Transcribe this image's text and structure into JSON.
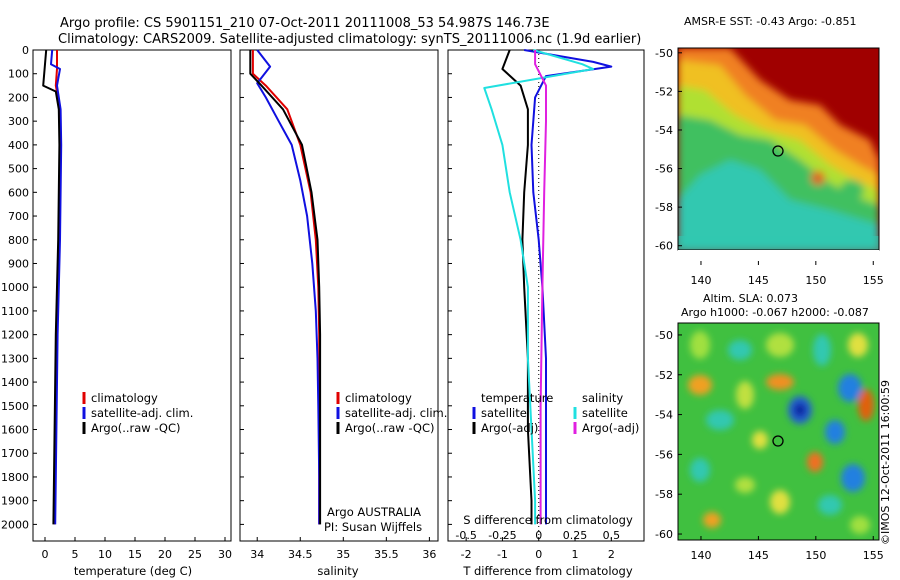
{
  "header": {
    "title_line1": "Argo profile: CS 5901151_210 07-Oct-2011 20111008_53 54.987S 146.73E",
    "title_line2": "Climatology: CARS2009. Satellite-adjusted climatology: synTS_20111006.nc (1.9d earlier)"
  },
  "colors": {
    "climatology": "#e00000",
    "satellite": "#1010e0",
    "argo": "#000000",
    "satellite_salinity": "#20e0e0",
    "argo_salinity_adj": "#e020e0"
  },
  "depth_axis": {
    "ticks": [
      "0",
      "100",
      "200",
      "300",
      "400",
      "500",
      "600",
      "700",
      "800",
      "900",
      "1000",
      "1100",
      "1200",
      "1300",
      "1400",
      "1500",
      "1600",
      "1700",
      "1800",
      "1900",
      "2000"
    ],
    "ylim": [
      0,
      2070
    ]
  },
  "temp_panel": {
    "xlabel": "temperature (deg C)",
    "xticks": [
      "0",
      "5",
      "10",
      "15",
      "20",
      "25",
      "30"
    ],
    "legend": [
      "climatology",
      "satellite-adj. clim.",
      "Argo(..raw -QC)"
    ]
  },
  "sal_panel": {
    "xlabel": "salinity",
    "xticks": [
      "34",
      "34.5",
      "35",
      "35.5",
      "36"
    ],
    "legend": [
      "climatology",
      "satellite-adj. clim.",
      "Argo(..raw -QC)"
    ],
    "note_line1": "Argo AUSTRALIA",
    "note_line2": "PI: Susan Wijffels"
  },
  "diff_panel": {
    "xlabel": "T difference from climatology",
    "top_label": "S difference from climatology",
    "xticks_T": [
      "-2",
      "-1",
      "0",
      "1",
      "2"
    ],
    "xticks_S": [
      "-0.5",
      "-0.25",
      "0",
      "0.25",
      "0.5"
    ],
    "legend_left_title": "temperature",
    "legend_left": [
      "satellite",
      "Argo(-adj)"
    ],
    "legend_right_title": "salinity",
    "legend_right": [
      "satellite",
      "Argo(-adj)"
    ]
  },
  "sst_map": {
    "title": "AMSR-E SST: -0.43 Argo: -0.851",
    "yticks": [
      "-50",
      "-52",
      "-54",
      "-56",
      "-58",
      "-60"
    ],
    "xticks": [
      "140",
      "145",
      "150",
      "155"
    ]
  },
  "sla_map": {
    "title_line1": "Altim. SLA: 0.073",
    "title_line2": "Argo h1000: -0.067 h2000: -0.087",
    "yticks": [
      "-50",
      "-52",
      "-54",
      "-56",
      "-58",
      "-60"
    ],
    "xticks": [
      "140",
      "145",
      "150",
      "155"
    ]
  },
  "watermark": "©IMOS 12-Oct-2011 16:00:59",
  "chart_data": [
    {
      "type": "line",
      "xlabel": "temperature (deg C)",
      "ylabel": "",
      "xlim": [
        -2,
        31
      ],
      "ylim": [
        0,
        2070
      ],
      "series": [
        {
          "name": "climatology",
          "points": [
            [
              2.0,
              0
            ],
            [
              2.0,
              80
            ],
            [
              1.8,
              150
            ],
            [
              2.5,
              250
            ],
            [
              2.6,
              400
            ],
            [
              2.5,
              600
            ],
            [
              2.4,
              800
            ],
            [
              2.2,
              1000
            ],
            [
              2.0,
              1200
            ],
            [
              1.9,
              1400
            ],
            [
              1.8,
              1600
            ],
            [
              1.7,
              1800
            ],
            [
              1.6,
              2000
            ]
          ]
        },
        {
          "name": "satellite-adj. clim.",
          "points": [
            [
              1.2,
              0
            ],
            [
              1.0,
              60
            ],
            [
              2.5,
              80
            ],
            [
              2.0,
              150
            ],
            [
              2.6,
              250
            ],
            [
              2.7,
              400
            ],
            [
              2.6,
              600
            ],
            [
              2.5,
              800
            ],
            [
              2.3,
              1000
            ],
            [
              2.1,
              1200
            ],
            [
              2.0,
              1400
            ],
            [
              1.9,
              1600
            ],
            [
              1.8,
              1800
            ],
            [
              1.7,
              2000
            ]
          ]
        },
        {
          "name": "Argo(..raw -QC)",
          "points": [
            [
              0.2,
              0
            ],
            [
              0.0,
              60
            ],
            [
              -0.3,
              150
            ],
            [
              1.8,
              175
            ],
            [
              2.3,
              250
            ],
            [
              2.4,
              400
            ],
            [
              2.3,
              600
            ],
            [
              2.2,
              800
            ],
            [
              2.0,
              1000
            ],
            [
              1.8,
              1200
            ],
            [
              1.7,
              1400
            ],
            [
              1.6,
              1600
            ],
            [
              1.5,
              1800
            ],
            [
              1.4,
              2000
            ]
          ]
        }
      ]
    },
    {
      "type": "line",
      "xlabel": "salinity",
      "ylabel": "",
      "xlim": [
        33.8,
        36.1
      ],
      "ylim": [
        0,
        2070
      ],
      "series": [
        {
          "name": "climatology",
          "points": [
            [
              33.95,
              0
            ],
            [
              33.95,
              100
            ],
            [
              34.1,
              150
            ],
            [
              34.35,
              250
            ],
            [
              34.5,
              400
            ],
            [
              34.62,
              600
            ],
            [
              34.68,
              800
            ],
            [
              34.71,
              1000
            ],
            [
              34.72,
              1200
            ],
            [
              34.72,
              1400
            ],
            [
              34.72,
              1600
            ],
            [
              34.72,
              1800
            ],
            [
              34.72,
              2000
            ]
          ]
        },
        {
          "name": "satellite-adj. clim.",
          "points": [
            [
              34.0,
              0
            ],
            [
              34.15,
              70
            ],
            [
              34.0,
              140
            ],
            [
              34.1,
              200
            ],
            [
              34.25,
              300
            ],
            [
              34.4,
              400
            ],
            [
              34.5,
              550
            ],
            [
              34.58,
              700
            ],
            [
              34.64,
              900
            ],
            [
              34.68,
              1100
            ],
            [
              34.7,
              1300
            ],
            [
              34.71,
              1500
            ],
            [
              34.72,
              1800
            ],
            [
              34.72,
              2000
            ]
          ]
        },
        {
          "name": "Argo(..raw -QC)",
          "points": [
            [
              33.92,
              0
            ],
            [
              33.92,
              100
            ],
            [
              34.05,
              150
            ],
            [
              34.3,
              250
            ],
            [
              34.52,
              400
            ],
            [
              34.63,
              600
            ],
            [
              34.7,
              800
            ],
            [
              34.72,
              1000
            ],
            [
              34.73,
              1200
            ],
            [
              34.73,
              1400
            ],
            [
              34.73,
              1600
            ],
            [
              34.73,
              1800
            ],
            [
              34.73,
              2000
            ]
          ]
        }
      ]
    },
    {
      "type": "line",
      "xlabel": "T difference from climatology",
      "ylabel": "",
      "xlim": [
        -2.5,
        2.9
      ],
      "ylim": [
        0,
        2070
      ],
      "series": [
        {
          "name": "temperature satellite",
          "points": [
            [
              -0.4,
              0
            ],
            [
              1.5,
              50
            ],
            [
              2.0,
              70
            ],
            [
              0.2,
              110
            ],
            [
              -0.1,
              200
            ],
            [
              -0.2,
              400
            ],
            [
              -0.15,
              600
            ],
            [
              0.0,
              800
            ],
            [
              0.1,
              1000
            ],
            [
              0.2,
              1300
            ],
            [
              0.2,
              1600
            ],
            [
              0.2,
              1900
            ],
            [
              0.2,
              2000
            ]
          ]
        },
        {
          "name": "temperature Argo(-adj)",
          "points": [
            [
              -0.8,
              0
            ],
            [
              -1.0,
              80
            ],
            [
              -0.5,
              150
            ],
            [
              -0.3,
              250
            ],
            [
              -0.3,
              400
            ],
            [
              -0.4,
              600
            ],
            [
              -0.45,
              800
            ],
            [
              -0.4,
              1000
            ],
            [
              -0.3,
              1300
            ],
            [
              -0.3,
              1600
            ],
            [
              -0.2,
              1900
            ],
            [
              -0.2,
              2000
            ]
          ]
        },
        {
          "name": "salinity satellite",
          "points": [
            [
              -0.15,
              0
            ],
            [
              1.2,
              60
            ],
            [
              1.5,
              80
            ],
            [
              -1.5,
              160
            ],
            [
              -1.3,
              250
            ],
            [
              -1.0,
              400
            ],
            [
              -0.8,
              600
            ],
            [
              -0.5,
              800
            ],
            [
              -0.3,
              1000
            ],
            [
              -0.3,
              1300
            ],
            [
              -0.2,
              1600
            ],
            [
              -0.1,
              1900
            ],
            [
              -0.1,
              2000
            ]
          ]
        },
        {
          "name": "salinity Argo(-adj)",
          "points": [
            [
              -0.1,
              0
            ],
            [
              -0.1,
              60
            ],
            [
              0.2,
              150
            ],
            [
              0.2,
              300
            ],
            [
              0.15,
              600
            ],
            [
              0.1,
              1000
            ],
            [
              0.05,
              1500
            ],
            [
              0.05,
              2000
            ]
          ]
        }
      ]
    }
  ]
}
